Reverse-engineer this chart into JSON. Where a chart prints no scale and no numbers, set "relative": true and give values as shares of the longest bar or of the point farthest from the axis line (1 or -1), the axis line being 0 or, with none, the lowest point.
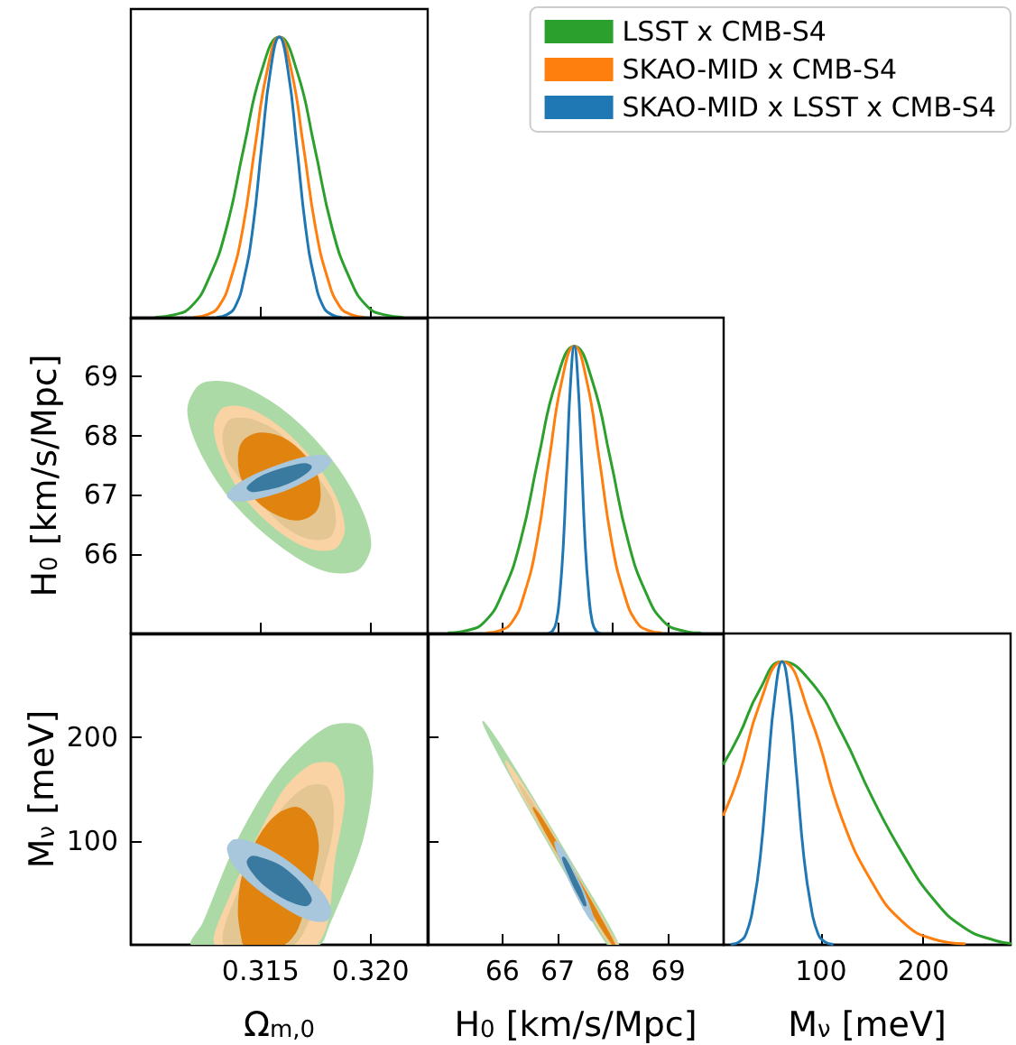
{
  "chart_data": [
    {
      "type": "line",
      "relative": true,
      "xlim": [
        0.3091,
        0.3226
      ],
      "xticks": [
        {
          "value": 0.315,
          "label": null
        },
        {
          "value": 0.32,
          "label": null
        }
      ],
      "tick_labels": false,
      "legend": "top right",
      "series": [
        {
          "name": "LSST x CMB-S4",
          "color": "#2ca02c",
          "x": [
            0.31025,
            0.31105,
            0.31185,
            0.31265,
            0.31345,
            0.31425,
            0.31505,
            0.31585,
            0.31665,
            0.31745,
            0.31825,
            0.31905,
            0.31985,
            0.32065,
            0.32145
          ],
          "values": [
            0.002,
            0.01,
            0.04,
            0.14,
            0.32,
            0.61,
            0.88,
            1,
            0.88,
            0.61,
            0.32,
            0.14,
            0.04,
            0.01,
            0.002
          ]
        },
        {
          "name": "SKAO-MID x CMB-S4",
          "color": "#ff7f0e",
          "x": [
            0.312,
            0.31255,
            0.3131,
            0.31365,
            0.3142,
            0.31475,
            0.3153,
            0.31585,
            0.3164,
            0.31695,
            0.3175,
            0.31805,
            0.3186,
            0.31915,
            0.3197
          ],
          "values": [
            0.002,
            0.01,
            0.04,
            0.14,
            0.32,
            0.61,
            0.88,
            1,
            0.88,
            0.61,
            0.32,
            0.14,
            0.04,
            0.01,
            0.002
          ]
        },
        {
          "name": "SKAO-MID x LSST x CMB-S4",
          "color": "#1f77b4",
          "x": [
            0.31305,
            0.31345,
            0.31385,
            0.31425,
            0.31465,
            0.31505,
            0.31545,
            0.31585,
            0.31625,
            0.31665,
            0.31705,
            0.31745,
            0.31785,
            0.31825,
            0.31865
          ],
          "values": [
            0.002,
            0.01,
            0.04,
            0.14,
            0.32,
            0.61,
            0.88,
            1,
            0.88,
            0.61,
            0.32,
            0.14,
            0.04,
            0.01,
            0.002
          ]
        }
      ]
    },
    {
      "type": "area",
      "ylabel": "H$_{0}$ [km/s/Mpc]",
      "xlim": [
        0.3091,
        0.3226
      ],
      "ylim": [
        64.65,
        70.0
      ],
      "xticks": [
        {
          "value": 0.315,
          "label": null
        },
        {
          "value": 0.32,
          "label": null
        }
      ],
      "yticks": [
        66,
        67,
        68,
        69
      ],
      "tick_labels": "y",
      "series": [
        {
          "color": "#acdaa6",
          "x": [
            0.32,
            0.3194,
            0.3179,
            0.3159,
            0.3138,
            0.3123,
            0.3117,
            0.3123,
            0.3138,
            0.3159,
            0.3179,
            0.3194
          ],
          "values": [
            66.16,
            66.89,
            67.74,
            68.46,
            68.88,
            68.87,
            68.44,
            67.71,
            66.86,
            66.14,
            65.72,
            65.73
          ]
        },
        {
          "color": "#f9d3a4",
          "x": [
            0.3188,
            0.3184,
            0.3173,
            0.3158,
            0.3143,
            0.3133,
            0.3129,
            0.3133,
            0.3143,
            0.3158,
            0.3173,
            0.3184
          ],
          "values": [
            66.42,
            66.97,
            67.61,
            68.16,
            68.47,
            68.46,
            68.14,
            67.59,
            66.95,
            66.4,
            66.09,
            66.1
          ]
        },
        {
          "color": "#e3c692",
          "x": [
            0.3184,
            0.3181,
            0.3171,
            0.3159,
            0.3146,
            0.3136,
            0.3133,
            0.3136,
            0.3146,
            0.3159,
            0.3171,
            0.3181
          ],
          "values": [
            66.55,
            67.01,
            null,
            68.01,
            68.27,
            68.26,
            67.99,
            67.53,
            null,
            66.53,
            66.27,
            66.28
          ]
        },
        {
          "color": "#e0840f",
          "x": [
            0.3177,
            0.3175,
            0.3168,
            0.3159,
            0.3149,
            0.3142,
            0.314,
            0.3142,
            0.3149,
            0.3159,
            0.3168,
            0.3175
          ],
          "values": [
            67.02,
            67.39,
            67.74,
            67.98,
            68.04,
            67.9,
            67.6,
            67.23,
            66.88,
            66.64,
            66.58,
            66.72
          ]
        },
        {
          "color": "#a8c6dc",
          "x": [
            0.3182,
            0.3179,
            0.317,
            0.3159,
            0.3147,
            0.3138,
            0.3135,
            0.3138,
            0.3147,
            0.3159,
            0.317,
            0.3179
          ],
          "values": [
            67.58,
            67.66,
            67.63,
            67.51,
            67.33,
            67.13,
            66.98,
            66.9,
            66.93,
            67.05,
            67.23,
            67.43
          ]
        },
        {
          "color": "#3b7aa0",
          "x": [
            0.3173,
            0.3171,
            0.3166,
            0.3159,
            0.3151,
            0.3146,
            0.3144,
            0.3146,
            0.3151,
            0.3159,
            0.3166,
            0.3171
          ],
          "values": [
            67.47,
            67.52,
            67.5,
            67.43,
            67.32,
            67.2,
            67.11,
            67.06,
            67.08,
            67.15,
            67.26,
            67.38
          ]
        }
      ]
    },
    {
      "type": "line",
      "relative": true,
      "xlim": [
        64.65,
        70.0
      ],
      "xticks": [
        {
          "value": 66,
          "label": null
        },
        {
          "value": 67,
          "label": null
        },
        {
          "value": 68,
          "label": null
        },
        {
          "value": 69,
          "label": null
        }
      ],
      "tick_labels": false,
      "series": [
        {
          "color": "#2ca02c",
          "x": [
            65.025,
            65.35,
            65.675,
            66.0,
            66.325,
            66.65,
            66.975,
            67.3,
            67.625,
            67.95,
            68.275,
            68.6,
            68.925,
            69.25,
            69.575
          ],
          "values": [
            0.002,
            0.01,
            0.04,
            0.14,
            0.32,
            0.61,
            0.88,
            1,
            0.88,
            0.61,
            0.32,
            0.14,
            0.04,
            0.01,
            0.002
          ]
        },
        {
          "color": "#ff7f0e",
          "x": [
            65.725,
            65.95,
            66.175,
            66.4,
            66.625,
            66.85,
            67.075,
            67.3,
            67.525,
            67.75,
            67.975,
            68.2,
            68.425,
            68.65,
            68.875
          ],
          "values": [
            0.002,
            0.01,
            0.04,
            0.14,
            0.32,
            0.61,
            0.88,
            1,
            0.88,
            0.61,
            0.32,
            0.14,
            0.04,
            0.01,
            0.002
          ]
        },
        {
          "color": "#1f77b4",
          "x": [
            66.845,
            66.91,
            66.975,
            67.04,
            67.105,
            67.17,
            67.235,
            67.3,
            67.365,
            67.43,
            67.495,
            67.56,
            67.625,
            67.69,
            67.755
          ],
          "values": [
            0.002,
            0.01,
            0.04,
            0.14,
            0.32,
            0.61,
            0.88,
            1,
            0.88,
            0.61,
            0.32,
            0.14,
            0.04,
            0.01,
            0.002
          ]
        }
      ]
    },
    {
      "type": "area",
      "xlabel": "Ω$_{m,0}$",
      "ylabel": "M$_{ν}$ [meV]",
      "xlim": [
        0.3091,
        0.3226
      ],
      "ylim": [
        0,
        300
      ],
      "xticks": [
        0.315,
        {
          "value": 0.32,
          "label": "0.320"
        }
      ],
      "yticks": [
        100,
        200
      ],
      "series": [
        {
          "color": "#acdaa6",
          "x": [
            0.3201,
            0.3196,
            0.3181,
            0.316,
            0.314,
            0.3124,
            0.3119,
            0.3176,
            0.3181,
            0.3196
          ],
          "values": [
            169,
            209,
            210,
            171,
            102,
            21,
            0,
            0,
            19,
            99
          ]
        },
        {
          "color": "#f9d3a4",
          "x": [
            0.3188,
            0.3184,
            0.3173,
            0.3159,
            0.3144,
            0.3133,
            0.313,
            0.3175,
            0.3177,
            0.3184
          ],
          "values": [
            142,
            173,
            173,
            144,
            null,
            31,
            0,
            0,
            null,
            89
          ]
        },
        {
          "color": "#e3c692",
          "x": [
            0.3183,
            0.318,
            0.3171,
            0.3159,
            0.3146,
            0.3137,
            0.3134,
            0.3165,
            0.3169,
            0.318
          ],
          "values": [
            127,
            152,
            152,
            128,
            null,
            36,
            0,
            0,
            null,
            84
          ]
        },
        {
          "color": "#e0840f",
          "x": [
            0.3176,
            0.3174,
            0.3167,
            0.3158,
            0.3149,
            0.3142,
            0.314,
            0.3142,
            0.3143,
            0.316,
            0.3167
          ],
          "values": [
            89,
            118,
            132,
            126,
            103,
            68,
            31,
            2,
            0,
            0,
            17
          ]
        },
        {
          "color": "#a8c6dc",
          "x": [
            0.3182,
            0.3179,
            0.317,
            0.3159,
            0.3147,
            0.3138,
            0.3135,
            0.3138,
            0.3147,
            0.3159,
            0.317,
            0.3179
          ],
          "values": [
            31,
            47,
            67,
            85,
            98,
            101,
            93,
            77,
            57,
            39,
            26,
            23
          ]
        },
        {
          "color": "#3b7aa0",
          "x": [
            0.3173,
            0.3171,
            0.3166,
            0.3159,
            0.3151,
            0.3146,
            0.3144,
            0.3146,
            0.3151,
            0.3159,
            0.3166,
            0.3171
          ],
          "values": [
            43,
            52,
            64,
            76,
            83,
            85,
            80,
            71,
            59,
            47,
            40,
            38
          ]
        }
      ]
    },
    {
      "type": "area",
      "xlabel": "H$_{0}$ [km/s/Mpc]",
      "xlim": [
        64.65,
        70.0
      ],
      "ylim": [
        0,
        300
      ],
      "xticks": [
        66,
        67,
        68,
        69
      ],
      "yticks": [
        100,
        200
      ],
      "tick_labels": "x",
      "series": [
        {
          "color": "#acdaa6",
          "x": [
            68.1,
            67.35,
            66.5,
            65.88,
            65.65,
            65.88,
            66.5,
            67.35,
            67.91
          ],
          "values": [
            0,
            70,
            146,
            199,
            215,
            189,
            129,
            50,
            0
          ]
        },
        {
          "color": "#f9d3a4",
          "x": [
            68.08,
            68.0,
            67.35,
            66.71,
            66.23,
            66.06,
            66.23,
            66.71,
            67.35,
            67.95
          ],
          "values": [
            0,
            8,
            67,
            125,
            165,
            177,
            157,
            112,
            53,
            0
          ]
        },
        {
          "color": "#e3c692",
          "x": [
            68.06,
            67.88,
            67.35,
            66.83,
            66.44,
            66.3,
            66.44,
            66.83,
            67.35,
            67.88,
            67.97
          ],
          "values": [
            0,
            18,
            66,
            113,
            145,
            155,
            139,
            102,
            54,
            7,
            0
          ]
        },
        {
          "color": "#e0840f",
          "x": [
            68.03,
            67.75,
            67.35,
            66.96,
            66.67,
            66.56,
            66.67,
            66.96,
            67.35,
            67.75,
            68.0
          ],
          "values": [
            0,
            28,
            65,
            100,
            125,
            132,
            120,
            92,
            null,
            20,
            0
          ]
        },
        {
          "color": "#a8c6dc",
          "x": [
            67.65,
            67.6,
            67.48,
            67.3,
            67.13,
            67.0,
            66.95,
            67.0,
            67.13,
            67.3,
            67.48,
            67.6
          ],
          "values": [
            23,
            33,
            50,
            70,
            88,
            98,
            99,
            89,
            72,
            52,
            34,
            24
          ]
        },
        {
          "color": "#3b7aa0",
          "x": [
            67.51,
            67.48,
            67.41,
            67.3,
            67.2,
            67.12,
            67.09,
            67.12,
            67.2,
            67.3,
            67.41,
            67.48
          ],
          "values": [
            38,
            44,
            54,
            66,
            77,
            84,
            84,
            78,
            68,
            56,
            45,
            38
          ]
        }
      ]
    },
    {
      "type": "line",
      "relative": true,
      "xlabel": "M$_{ν}$ [meV]",
      "xlim": [
        5,
        285
      ],
      "xticks": [
        100,
        200
      ],
      "tick_labels": "x",
      "series": [
        {
          "color": "#2ca02c",
          "x": [
            5,
            20,
            40,
            62,
            90,
            120,
            150,
            180,
            210,
            240,
            270,
            285
          ],
          "values": [
            0.64,
            0.74,
            0.9,
            1,
            0.93,
            0.75,
            0.52,
            0.32,
            0.16,
            0.06,
            0.015,
            0.005
          ]
        },
        {
          "color": "#ff7f0e",
          "x": [
            5,
            20,
            40,
            62,
            90,
            120,
            150,
            180,
            210,
            240
          ],
          "values": [
            0.46,
            0.6,
            0.85,
            1,
            0.8,
            0.45,
            0.22,
            0.08,
            0.02,
            0.004
          ]
        },
        {
          "color": "#1f77b4",
          "x": [
            13,
            20,
            27,
            34,
            41,
            48,
            55,
            62,
            69,
            76,
            83,
            90,
            97,
            104,
            111
          ],
          "values": [
            0.002,
            0.01,
            0.04,
            0.14,
            0.32,
            0.61,
            0.88,
            1,
            0.88,
            0.61,
            0.32,
            0.14,
            0.04,
            0.01,
            0.002
          ]
        }
      ]
    }
  ]
}
